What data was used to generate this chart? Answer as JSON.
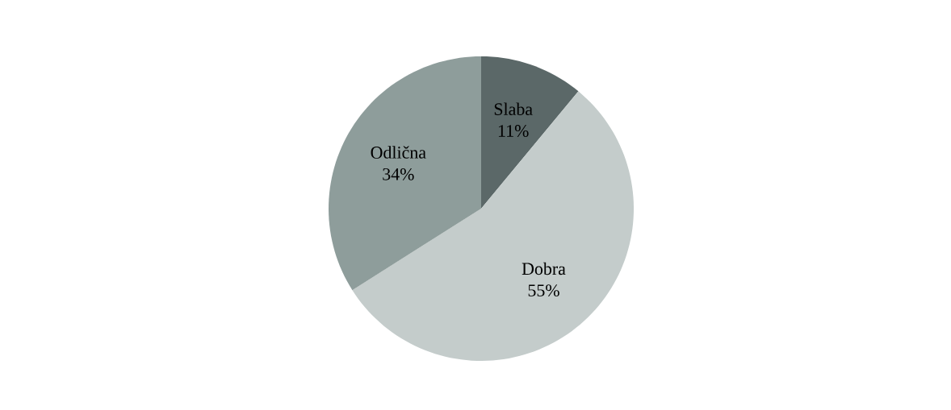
{
  "chart_data": {
    "type": "pie",
    "categories": [
      "Slaba",
      "Dobra",
      "Odlična"
    ],
    "values": [
      11,
      55,
      34
    ],
    "colors": [
      "#5b6868",
      "#c4cccb",
      "#8e9d9b"
    ],
    "value_labels": [
      "11%",
      "55%",
      "34%"
    ]
  }
}
